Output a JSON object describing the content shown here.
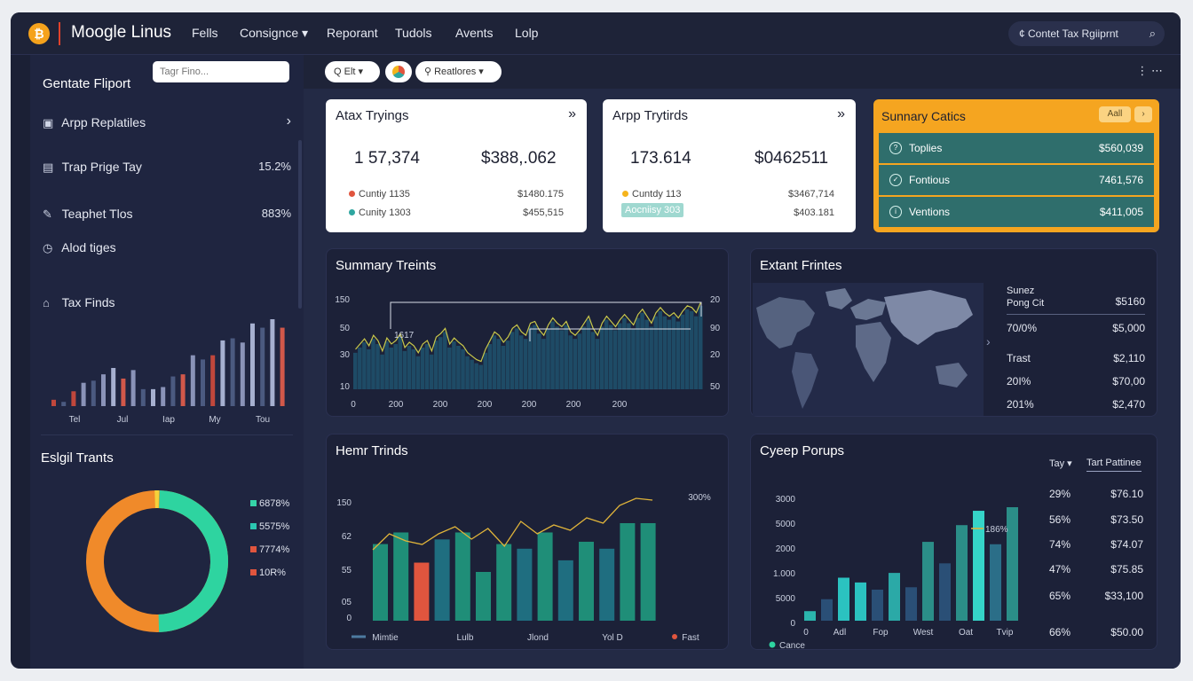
{
  "header": {
    "logo_glyph": "₿",
    "app_title": "Moogle Linus",
    "nav": [
      "Fells",
      "Consignce ▾",
      "Reporant",
      "Tudols",
      "Avents",
      "Lolp"
    ],
    "search_text": "¢ Contet Tax Rgiiprnt",
    "search_icon": "search-icon"
  },
  "sidebar": {
    "title": "Gentate Fliport",
    "search_placeholder": "Tagr Fino...",
    "items": [
      {
        "icon": "▣",
        "label": "Arpp Replatiles",
        "value": "›"
      },
      {
        "icon": "▤",
        "label": "Trap Prige Tay",
        "value": "15.2%"
      },
      {
        "icon": "✎",
        "label": "Teaphet Tlos",
        "value": "883%"
      },
      {
        "icon": "◷",
        "label": "Alod tiges",
        "value": ""
      },
      {
        "icon": "⌂",
        "label": "Tax Finds",
        "value": ""
      }
    ],
    "bar_labels": [
      "Tel",
      "Jul",
      "Iap",
      "My",
      "Tou"
    ],
    "bars": [
      {
        "v": 6,
        "c": "#c0473c"
      },
      {
        "v": 4,
        "c": "#4b5a80"
      },
      {
        "v": 14,
        "c": "#c0473c"
      },
      {
        "v": 22,
        "c": "#8a93b8"
      },
      {
        "v": 24,
        "c": "#4b5a80"
      },
      {
        "v": 30,
        "c": "#8a93b8"
      },
      {
        "v": 36,
        "c": "#a6b0d0"
      },
      {
        "v": 26,
        "c": "#d1584a"
      },
      {
        "v": 34,
        "c": "#8a93b8"
      },
      {
        "v": 16,
        "c": "#4b5a80"
      },
      {
        "v": 16,
        "c": "#a6b0d0"
      },
      {
        "v": 18,
        "c": "#8a93b8"
      },
      {
        "v": 28,
        "c": "#4b5a80"
      },
      {
        "v": 30,
        "c": "#d1584a"
      },
      {
        "v": 48,
        "c": "#8a93b8"
      },
      {
        "v": 44,
        "c": "#4b5a80"
      },
      {
        "v": 48,
        "c": "#c0473c"
      },
      {
        "v": 62,
        "c": "#a6b0d0"
      },
      {
        "v": 64,
        "c": "#4b5a80"
      },
      {
        "v": 60,
        "c": "#8a93b8"
      },
      {
        "v": 78,
        "c": "#a6b0d0"
      },
      {
        "v": 74,
        "c": "#4b5a80"
      },
      {
        "v": 82,
        "c": "#a6b0d0"
      },
      {
        "v": 74,
        "c": "#d1584a"
      }
    ],
    "donut_title": "Eslgil Trants",
    "donut": {
      "orange": 0.5,
      "green": 0.49,
      "yellow": 0.01
    },
    "donut_legend": [
      {
        "label": "6878%",
        "c": "#35d4a8"
      },
      {
        "label": "5575%",
        "c": "#2bc7b1"
      },
      {
        "label": "7774%",
        "c": "#e0553e"
      },
      {
        "label": "10R%",
        "c": "#e0553e"
      }
    ]
  },
  "toolbar": {
    "pill_1": "Q Elt ▾",
    "pill_3": "⚲ Reatlores ▾",
    "kebab": "⋮ ⋯"
  },
  "card1": {
    "title": "Atax Tryings",
    "arrow": "»",
    "n1": "1 57,374",
    "n2": "$388,.062",
    "rows": [
      {
        "dot": "#e0553e",
        "label": "Cuntiy 1135",
        "value": "$1480.175"
      },
      {
        "dot": "#2fa6a0",
        "label": "Cunity 1303",
        "value": "$455,515"
      }
    ]
  },
  "card2": {
    "title": "Arpp Trytirds",
    "arrow": "»",
    "n1": "173.614",
    "n2": "$0462511",
    "rows": [
      {
        "dot": "#f5b41c",
        "label": "Cuntdy 113",
        "value": "$3467,714"
      },
      {
        "dot": "",
        "label": "Aocniisy 303",
        "value": "$403.181"
      }
    ]
  },
  "summary": {
    "title": "Sunnary Catics",
    "btn_1": "Aall",
    "btn_2": "›",
    "rows": [
      {
        "icon": "?",
        "label": "Toplies",
        "value": "$560,039"
      },
      {
        "icon": "✓",
        "label": "Fontious",
        "value": "7461,576"
      },
      {
        "icon": "i",
        "label": "Ventions",
        "value": "$411,005"
      }
    ]
  },
  "trend": {
    "title": "Summary Treints",
    "y_left": [
      "150",
      "50",
      "30",
      "10"
    ],
    "y_right": [
      "20",
      "90",
      "20",
      "50"
    ],
    "x_labels": [
      "0",
      "200",
      "200",
      "200",
      "200",
      "200",
      "200"
    ],
    "annotation": "1617",
    "values": [
      42,
      48,
      54,
      46,
      58,
      52,
      40,
      55,
      48,
      52,
      60,
      44,
      50,
      46,
      38,
      48,
      52,
      40,
      56,
      60,
      66,
      48,
      55,
      50,
      46,
      38,
      34,
      30,
      28,
      42,
      52,
      62,
      58,
      50,
      56,
      66,
      70,
      62,
      58,
      72,
      74,
      64,
      58,
      70,
      78,
      72,
      68,
      74,
      62,
      58,
      64,
      72,
      80,
      66,
      58,
      72,
      80,
      74,
      68,
      76,
      82,
      76,
      70,
      82,
      88,
      80,
      72,
      84,
      90,
      84,
      80,
      84,
      78,
      86,
      92,
      90,
      84,
      96
    ]
  },
  "map_panel": {
    "title": "Extant Frintes",
    "rows": [
      {
        "label": "Sunez\nPong Cit",
        "value": "$5160"
      },
      {
        "label": "70/0%",
        "value": "$5,000"
      },
      {
        "label": "Trast",
        "value": "$2,110"
      },
      {
        "label": "20I%",
        "value": "$70,00"
      },
      {
        "label": "201%",
        "value": "$2,470"
      }
    ],
    "nav_arrow": "›"
  },
  "hemp": {
    "title": "Hemr Trinds",
    "y_labels": [
      "150",
      "62",
      "55",
      "05",
      "0"
    ],
    "x_labels": [
      "Mimtie",
      "Lulb",
      "Jlond",
      "Yol D",
      "Fast"
    ],
    "peak": "300%",
    "bars": [
      {
        "v": 66,
        "c": "#1f8e78"
      },
      {
        "v": 76,
        "c": "#1f8e78"
      },
      {
        "v": 50,
        "c": "#e0553e"
      },
      {
        "v": 70,
        "c": "#1f6e80"
      },
      {
        "v": 76,
        "c": "#1f8e78"
      },
      {
        "v": 42,
        "c": "#1f8e78"
      },
      {
        "v": 66,
        "c": "#1f8e78"
      },
      {
        "v": 62,
        "c": "#1f6e80"
      },
      {
        "v": 76,
        "c": "#1f8e78"
      },
      {
        "v": 52,
        "c": "#1f6e80"
      },
      {
        "v": 68,
        "c": "#1f8e78"
      },
      {
        "v": 62,
        "c": "#1f6e80"
      },
      {
        "v": 84,
        "c": "#1f8e78"
      },
      {
        "v": 84,
        "c": "#1f8e78"
      }
    ],
    "line": [
      60,
      78,
      70,
      66,
      78,
      86,
      72,
      84,
      64,
      92,
      78,
      88,
      82,
      96,
      90,
      110,
      118,
      116
    ]
  },
  "cyeep": {
    "title": "Cyeep Porups",
    "tabs": [
      "Tay ▾",
      "Tart Pattinee"
    ],
    "y_labels": [
      "3000",
      "5000",
      "2000",
      "1.000",
      "5000",
      "0"
    ],
    "x_labels": [
      "Adl",
      "Fop",
      "West",
      "Oat",
      "Tvip"
    ],
    "legend": "Cance",
    "annotation": "186%",
    "bars": [
      {
        "v": 8,
        "c": "#2bb5ad"
      },
      {
        "v": 18,
        "c": "#2a4f76"
      },
      {
        "v": 36,
        "c": "#2bc2c0"
      },
      {
        "v": 32,
        "c": "#2bc2c0"
      },
      {
        "v": 26,
        "c": "#2a4f76"
      },
      {
        "v": 40,
        "c": "#2ba9a7"
      },
      {
        "v": 28,
        "c": "#2a4f76"
      },
      {
        "v": 66,
        "c": "#2b8e88"
      },
      {
        "v": 48,
        "c": "#2a4f76"
      },
      {
        "v": 80,
        "c": "#2b8e88"
      },
      {
        "v": 92,
        "c": "#35d4c8"
      },
      {
        "v": 64,
        "c": "#2b6e88"
      },
      {
        "v": 95,
        "c": "#2b8e88"
      }
    ],
    "rows": [
      {
        "label": "29%",
        "value": "$76.10"
      },
      {
        "label": "56%",
        "value": "$73.50"
      },
      {
        "label": "74%",
        "value": "$74.07"
      },
      {
        "label": "47%",
        "value": "$75.85"
      },
      {
        "label": "65%",
        "value": "$33,100"
      },
      {
        "label": "66%",
        "value": "$50.00"
      }
    ]
  }
}
